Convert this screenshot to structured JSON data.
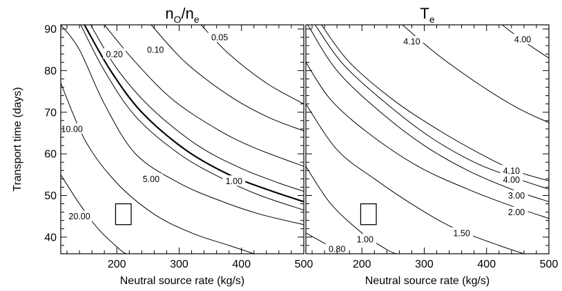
{
  "chart_data": [
    {
      "type": "contour",
      "title_main": "n",
      "title_sub1": "O",
      "title_mid": "/n",
      "title_sub2": "e",
      "xlabel": "Neutral source rate (kg/s)",
      "ylabel": "Transport time (days)",
      "xlim": [
        110,
        500
      ],
      "ylim": [
        36,
        91
      ],
      "xticks": [
        200,
        300,
        400,
        500
      ],
      "yticks": [
        40,
        50,
        60,
        70,
        80,
        90
      ],
      "marker": {
        "x": [
          198,
          223
        ],
        "y": [
          43,
          48
        ]
      },
      "contours": [
        {
          "level": 20.0,
          "label": "20.00",
          "points": [
            [
              110,
              55
            ],
            [
              140,
              48
            ],
            [
              170,
              42
            ],
            [
              205,
              37
            ],
            [
              215,
              36
            ]
          ],
          "label_at": [
            140,
            45
          ]
        },
        {
          "level": 10.0,
          "label": "10.00",
          "points": [
            [
              110,
              77
            ],
            [
              150,
              63
            ],
            [
              200,
              53
            ],
            [
              260,
              45.5
            ],
            [
              320,
              41
            ],
            [
              380,
              38
            ],
            [
              420,
              36
            ]
          ],
          "label_at": [
            128,
            66
          ]
        },
        {
          "level": 5.0,
          "label": "5.00",
          "points": [
            [
              110,
              91
            ],
            [
              140,
              85
            ],
            [
              180,
              72
            ],
            [
              230,
              60
            ],
            [
              300,
              53
            ],
            [
              370,
              48.5
            ],
            [
              430,
              45.5
            ],
            [
              500,
              43
            ]
          ],
          "label_at": [
            255,
            54
          ]
        },
        {
          "level": 2.0,
          "label": "",
          "points": [
            [
              142,
              91
            ],
            [
              180,
              80
            ],
            [
              230,
              69
            ],
            [
              300,
              60
            ],
            [
              370,
              54
            ],
            [
              430,
              50
            ],
            [
              500,
              46.5
            ]
          ],
          "label_at": null
        },
        {
          "level": 1.0,
          "label": "1.00",
          "bold": true,
          "points": [
            [
              148,
              91
            ],
            [
              190,
              80
            ],
            [
              240,
              70
            ],
            [
              310,
              61
            ],
            [
              380,
              55
            ],
            [
              440,
              51.5
            ],
            [
              500,
              48.5
            ]
          ],
          "label_at": [
            388,
            53.5
          ]
        },
        {
          "level": 0.5,
          "label": "",
          "points": [
            [
              158,
              91
            ],
            [
              200,
              80.5
            ],
            [
              255,
              71
            ],
            [
              330,
              62
            ],
            [
              400,
              56.5
            ],
            [
              460,
              53
            ],
            [
              500,
              51
            ]
          ],
          "label_at": null
        },
        {
          "level": 0.2,
          "label": "0.20",
          "points": [
            [
              180,
              91
            ],
            [
              230,
              82
            ],
            [
              290,
              73
            ],
            [
              360,
              66
            ],
            [
              420,
              61.5
            ],
            [
              500,
              57
            ]
          ],
          "label_at": [
            196,
            84
          ]
        },
        {
          "level": 0.1,
          "label": "0.10",
          "points": [
            [
              255,
              91
            ],
            [
              310,
              82
            ],
            [
              380,
              74
            ],
            [
              440,
              69
            ],
            [
              500,
              65.5
            ]
          ],
          "label_at": [
            262,
            85
          ]
        },
        {
          "level": 0.05,
          "label": "0.05",
          "points": [
            [
              335,
              91
            ],
            [
              380,
              84
            ],
            [
              440,
              77
            ],
            [
              500,
              72
            ]
          ],
          "label_at": [
            365,
            88
          ]
        }
      ]
    },
    {
      "type": "contour",
      "title_main": "T",
      "title_sub": "e",
      "xlabel": "Neutral source rate (kg/s)",
      "ylabel": "",
      "xlim": [
        110,
        500
      ],
      "ylim": [
        36,
        91
      ],
      "xticks": [
        200,
        300,
        400,
        500
      ],
      "yticks": [
        40,
        50,
        60,
        70,
        80,
        90
      ],
      "marker": {
        "x": [
          198,
          223
        ],
        "y": [
          43,
          48
        ]
      },
      "contours": [
        {
          "level": 0.8,
          "label": "0.80",
          "points": [
            [
              110,
              41
            ],
            [
              140,
              38.5
            ],
            [
              170,
              36
            ]
          ],
          "label_at": [
            160,
            37.2
          ]
        },
        {
          "level": 1.0,
          "label": "1.00",
          "points": [
            [
              110,
              57
            ],
            [
              150,
              48
            ],
            [
              200,
              41
            ],
            [
              240,
              37
            ],
            [
              255,
              36
            ]
          ],
          "label_at": [
            205,
            39.5
          ]
        },
        {
          "level": 1.5,
          "label": "1.50",
          "points": [
            [
              110,
              72
            ],
            [
              160,
              61
            ],
            [
              220,
              54
            ],
            [
              290,
              47
            ],
            [
              350,
              42
            ],
            [
              420,
              38
            ],
            [
              460,
              36
            ]
          ],
          "label_at": [
            360,
            41
          ]
        },
        {
          "level": 2.0,
          "label": "2.00",
          "points": [
            [
              110,
              82
            ],
            [
              150,
              73
            ],
            [
              210,
              65
            ],
            [
              290,
              57
            ],
            [
              370,
              51.5
            ],
            [
              440,
              47.5
            ],
            [
              500,
              44.5
            ]
          ],
          "label_at": [
            448,
            46
          ]
        },
        {
          "level": 3.0,
          "label": "3.00",
          "points": [
            [
              113,
              91
            ],
            [
              160,
              80
            ],
            [
              230,
              70
            ],
            [
              300,
              62
            ],
            [
              370,
              56
            ],
            [
              440,
              51.5
            ],
            [
              500,
              48.5
            ]
          ],
          "label_at": [
            448,
            50
          ]
        },
        {
          "level": 4.0,
          "label": "4.00",
          "points": [
            [
              125,
              91
            ],
            [
              170,
              81.5
            ],
            [
              240,
              72
            ],
            [
              310,
              64
            ],
            [
              380,
              58
            ],
            [
              440,
              54.5
            ],
            [
              500,
              51.5
            ]
          ],
          "label_at": [
            440,
            53.8
          ]
        },
        {
          "level": 4.1,
          "label": "4.10",
          "points": [
            [
              135,
              91
            ],
            [
              180,
              82
            ],
            [
              250,
              73
            ],
            [
              320,
              66
            ],
            [
              390,
              60
            ],
            [
              445,
              56
            ],
            [
              500,
              53.5
            ]
          ],
          "label_at": [
            440,
            56
          ]
        },
        {
          "level": 4.1,
          "label": "4.10",
          "points": [
            [
              265,
              91
            ],
            [
              320,
              84
            ],
            [
              390,
              76.5
            ],
            [
              450,
              71
            ],
            [
              500,
              67.5
            ]
          ],
          "label_at": [
            280,
            87
          ]
        },
        {
          "level": 4.0,
          "label": "4.00",
          "points": [
            [
              425,
              91
            ],
            [
              460,
              87
            ],
            [
              500,
              83
            ]
          ],
          "label_at": [
            458,
            87.5
          ]
        }
      ]
    }
  ]
}
